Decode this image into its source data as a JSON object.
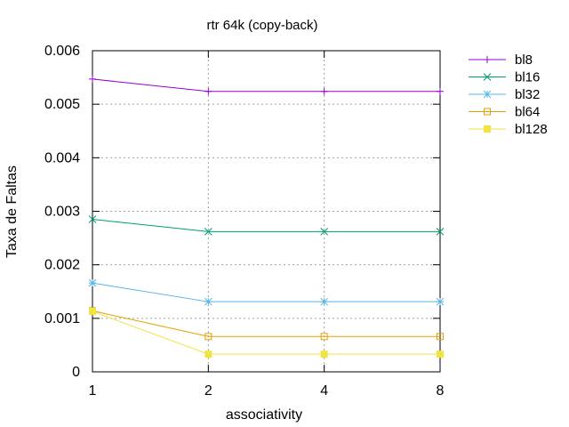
{
  "chart_data": {
    "type": "line",
    "title": "rtr 64k (copy-back)",
    "xlabel": "associativity",
    "ylabel": "Taxa de Faltas",
    "x": [
      "1",
      "2",
      "4",
      "8"
    ],
    "ylim": [
      0,
      0.006
    ],
    "yticks": [
      "0",
      "0.001",
      "0.002",
      "0.003",
      "0.004",
      "0.005",
      "0.006"
    ],
    "grid": true,
    "legend_position": "right-outside",
    "series": [
      {
        "name": "bl8",
        "values": [
          0.00547,
          0.00524,
          0.00524,
          0.00524
        ],
        "color": "#9400d3",
        "marker": "plus"
      },
      {
        "name": "bl16",
        "values": [
          0.00285,
          0.00262,
          0.00262,
          0.00262
        ],
        "color": "#009e73",
        "marker": "cross"
      },
      {
        "name": "bl32",
        "values": [
          0.00166,
          0.00131,
          0.00131,
          0.00131
        ],
        "color": "#56b4e9",
        "marker": "star"
      },
      {
        "name": "bl64",
        "values": [
          0.00114,
          0.00066,
          0.00066,
          0.00066
        ],
        "color": "#e69f00",
        "marker": "square-open"
      },
      {
        "name": "bl128",
        "values": [
          0.00113,
          0.00033,
          0.00033,
          0.00033
        ],
        "color": "#f0e442",
        "marker": "square-filled"
      }
    ]
  }
}
